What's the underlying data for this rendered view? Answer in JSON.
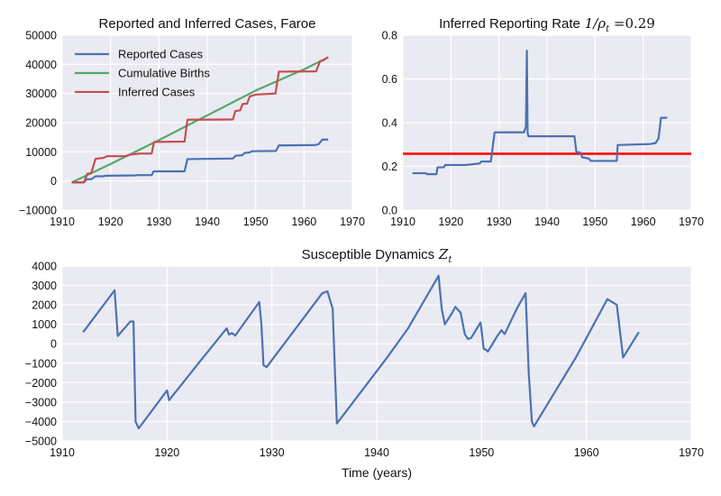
{
  "chart_data": [
    {
      "type": "line",
      "title": "Reported and Inferred Cases, Faroe",
      "xlabel": "",
      "ylabel": "",
      "xlim": [
        1910,
        1970
      ],
      "ylim": [
        -10000,
        50000
      ],
      "xticks": [
        "1910",
        "1920",
        "1930",
        "1940",
        "1950",
        "1960",
        "1970"
      ],
      "yticks": [
        "−10000",
        "0",
        "10000",
        "20000",
        "30000",
        "40000",
        "50000"
      ],
      "legend": "top-left",
      "grid": true,
      "series": [
        {
          "name": "Reported Cases",
          "color": "#4c72b0",
          "points": [
            [
              1912,
              -500
            ],
            [
              1914.5,
              -500
            ],
            [
              1915.1,
              600
            ],
            [
              1916,
              600
            ],
            [
              1916.9,
              1600
            ],
            [
              1918.5,
              1600
            ],
            [
              1919,
              1800
            ],
            [
              1925,
              1900
            ],
            [
              1925.6,
              2000
            ],
            [
              1928.5,
              2000
            ],
            [
              1928.9,
              3300
            ],
            [
              1935.3,
              3300
            ],
            [
              1935.9,
              7500
            ],
            [
              1945.3,
              7700
            ],
            [
              1945.9,
              8700
            ],
            [
              1947.2,
              8800
            ],
            [
              1947.7,
              9600
            ],
            [
              1948.8,
              9800
            ],
            [
              1949.2,
              10200
            ],
            [
              1954.2,
              10300
            ],
            [
              1954.8,
              12200
            ],
            [
              1962.2,
              12300
            ],
            [
              1963,
              12600
            ],
            [
              1963.8,
              14200
            ],
            [
              1965,
              14200
            ]
          ]
        },
        {
          "name": "Cumulative Births",
          "color": "#55a868",
          "points": [
            [
              1912,
              -500
            ],
            [
              1920,
              5800
            ],
            [
              1930,
              14000
            ],
            [
              1940,
              22500
            ],
            [
              1950,
              31000
            ],
            [
              1960,
              38300
            ],
            [
              1965,
              42400
            ]
          ]
        },
        {
          "name": "Inferred Cases",
          "color": "#c44e52",
          "points": [
            [
              1912,
              -500
            ],
            [
              1914.5,
              -500
            ],
            [
              1915.2,
              2500
            ],
            [
              1916,
              2700
            ],
            [
              1916.9,
              7600
            ],
            [
              1918.5,
              7900
            ],
            [
              1919.3,
              8500
            ],
            [
              1923,
              8500
            ],
            [
              1924,
              9000
            ],
            [
              1926,
              9400
            ],
            [
              1928.5,
              9400
            ],
            [
              1929,
              13400
            ],
            [
              1935.3,
              13500
            ],
            [
              1935.9,
              21000
            ],
            [
              1945.3,
              21100
            ],
            [
              1945.8,
              24000
            ],
            [
              1946.8,
              24200
            ],
            [
              1947.3,
              26400
            ],
            [
              1948.2,
              26500
            ],
            [
              1948.8,
              29000
            ],
            [
              1950,
              29600
            ],
            [
              1954.1,
              30000
            ],
            [
              1954.8,
              37500
            ],
            [
              1962.5,
              37600
            ],
            [
              1963.3,
              41000
            ],
            [
              1964,
              41400
            ],
            [
              1965,
              42500
            ]
          ]
        }
      ]
    },
    {
      "type": "line",
      "title": "Inferred Reporting Rate",
      "title_math": "1/ρ",
      "title_sub": "t",
      "title_value": "=0.29",
      "xlabel": "",
      "ylabel": "",
      "xlim": [
        1910,
        1970
      ],
      "ylim": [
        0,
        0.9
      ],
      "xticks": [
        "1910",
        "1920",
        "1930",
        "1940",
        "1950",
        "1960",
        "1970"
      ],
      "yticks": [
        "0.0",
        "0.2",
        "0.4",
        "0.6",
        "0.8"
      ],
      "grid": true,
      "reference_line": {
        "y": 0.29,
        "color": "#ff0000"
      },
      "series": [
        {
          "name": "",
          "color": "#4c72b0",
          "points": [
            [
              1912,
              0.19
            ],
            [
              1914.8,
              0.19
            ],
            [
              1915,
              0.185
            ],
            [
              1917,
              0.185
            ],
            [
              1917.2,
              0.22
            ],
            [
              1918.5,
              0.22
            ],
            [
              1918.8,
              0.232
            ],
            [
              1923,
              0.232
            ],
            [
              1926,
              0.24
            ],
            [
              1926.3,
              0.25
            ],
            [
              1928.3,
              0.25
            ],
            [
              1928.8,
              0.345
            ],
            [
              1929.1,
              0.4
            ],
            [
              1935.2,
              0.4
            ],
            [
              1935.6,
              0.43
            ],
            [
              1935.8,
              0.82
            ],
            [
              1935.95,
              0.4
            ],
            [
              1936.1,
              0.38
            ],
            [
              1945.7,
              0.38
            ],
            [
              1946.1,
              0.3
            ],
            [
              1947,
              0.295
            ],
            [
              1947.3,
              0.272
            ],
            [
              1948.7,
              0.265
            ],
            [
              1949.1,
              0.253
            ],
            [
              1954.5,
              0.253
            ],
            [
              1954.7,
              0.335
            ],
            [
              1961.5,
              0.34
            ],
            [
              1962.6,
              0.345
            ],
            [
              1963.2,
              0.37
            ],
            [
              1963.7,
              0.475
            ],
            [
              1965,
              0.475
            ]
          ]
        }
      ]
    },
    {
      "type": "line",
      "title": "Susceptible Dynamics",
      "title_math": "Z",
      "title_sub": "t",
      "xlabel": "Time (years)",
      "ylabel": "",
      "xlim": [
        1910,
        1970
      ],
      "ylim": [
        -5000,
        4000
      ],
      "xticks": [
        "1910",
        "1920",
        "1930",
        "1940",
        "1950",
        "1960",
        "1970"
      ],
      "yticks": [
        "−5000",
        "−4000",
        "−3000",
        "−2000",
        "−1000",
        "0",
        "1000",
        "2000",
        "3000",
        "4000"
      ],
      "grid": true,
      "series": [
        {
          "name": "",
          "color": "#4c72b0",
          "points": [
            [
              1912,
              600
            ],
            [
              1915,
              2750
            ],
            [
              1915.3,
              400
            ],
            [
              1916.5,
              1150
            ],
            [
              1916.8,
              1150
            ],
            [
              1917.0,
              -4000
            ],
            [
              1917.3,
              -4350
            ],
            [
              1920,
              -2400
            ],
            [
              1920.2,
              -2900
            ],
            [
              1923,
              -1000
            ],
            [
              1925.7,
              800
            ],
            [
              1925.9,
              480
            ],
            [
              1926.2,
              550
            ],
            [
              1926.5,
              420
            ],
            [
              1927,
              800
            ],
            [
              1928.8,
              2150
            ],
            [
              1929,
              1000
            ],
            [
              1929.2,
              -1100
            ],
            [
              1929.5,
              -1200
            ],
            [
              1934.8,
              2600
            ],
            [
              1935.3,
              2700
            ],
            [
              1935.8,
              1800
            ],
            [
              1936,
              -1200
            ],
            [
              1936.2,
              -4100
            ],
            [
              1941,
              -700
            ],
            [
              1943,
              800
            ],
            [
              1945.9,
              3500
            ],
            [
              1946.2,
              1800
            ],
            [
              1946.5,
              1000
            ],
            [
              1947.2,
              1600
            ],
            [
              1947.5,
              1900
            ],
            [
              1948,
              1600
            ],
            [
              1948.4,
              500
            ],
            [
              1948.7,
              250
            ],
            [
              1949,
              300
            ],
            [
              1949.9,
              1100
            ],
            [
              1950,
              700
            ],
            [
              1950.2,
              -250
            ],
            [
              1950.4,
              -300
            ],
            [
              1950.6,
              -400
            ],
            [
              1951.5,
              400
            ],
            [
              1951.9,
              700
            ],
            [
              1952.2,
              500
            ],
            [
              1953.4,
              1850
            ],
            [
              1954.2,
              2600
            ],
            [
              1954.5,
              -1500
            ],
            [
              1954.8,
              -4000
            ],
            [
              1955,
              -4250
            ],
            [
              1959,
              -700
            ],
            [
              1962,
              2300
            ],
            [
              1962.6,
              2100
            ],
            [
              1962.9,
              2000
            ],
            [
              1963.5,
              -700
            ],
            [
              1965,
              600
            ]
          ]
        }
      ]
    }
  ]
}
